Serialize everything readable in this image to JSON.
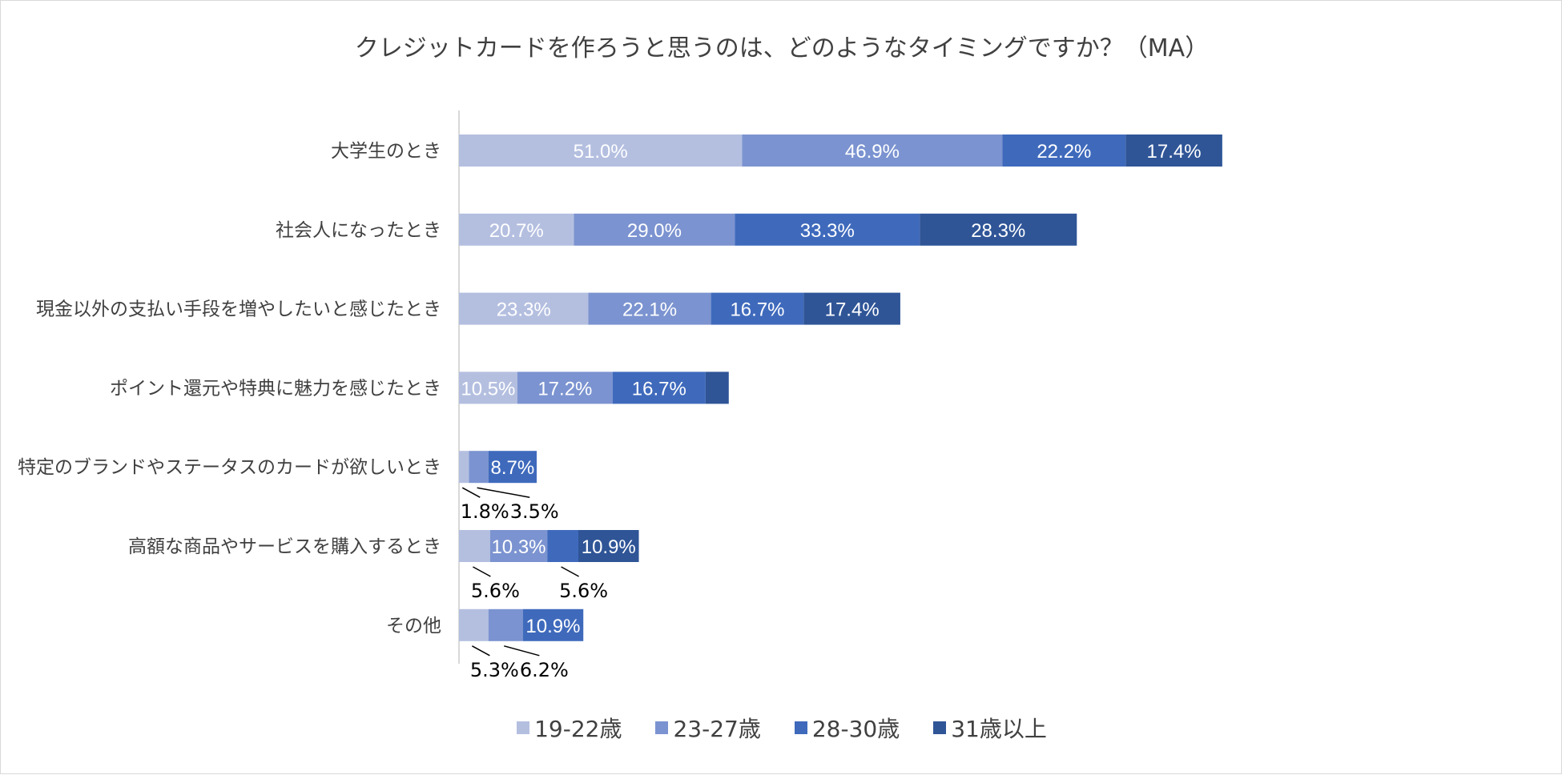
{
  "chart_data": {
    "type": "bar",
    "orientation": "horizontal",
    "stacked": true,
    "title": "クレジットカードを作ろうと思うのは、どのようなタイミングですか？（MA）",
    "categories": [
      "大学生のとき",
      "社会人になったとき",
      "現金以外の支払い手段を増やしたいと感じたとき",
      "ポイント還元や特典に魅力を感じたとき",
      "特定のブランドやステータスのカードが欲しいとき",
      "高額な商品やサービスを購入するとき",
      "その他"
    ],
    "series": [
      {
        "name": "19-22歳",
        "color": "#b4bfe0",
        "values": [
          51.0,
          20.7,
          23.3,
          10.5,
          1.8,
          5.6,
          5.3
        ]
      },
      {
        "name": "23-27歳",
        "color": "#7b93d0",
        "values": [
          46.9,
          29.0,
          22.1,
          17.2,
          3.5,
          10.3,
          6.2
        ]
      },
      {
        "name": "28-30歳",
        "color": "#3f6abc",
        "values": [
          22.2,
          33.3,
          16.7,
          16.7,
          8.7,
          5.6,
          10.9
        ]
      },
      {
        "name": "31歳以上",
        "color": "#2f5597",
        "values": [
          17.4,
          28.3,
          17.4,
          4.2,
          null,
          10.9,
          null
        ]
      }
    ],
    "labels": [
      [
        "51.0%",
        "46.9%",
        "22.2%",
        "17.4%"
      ],
      [
        "20.7%",
        "29.0%",
        "33.3%",
        "28.3%"
      ],
      [
        "23.3%",
        "22.1%",
        "16.7%",
        "17.4%"
      ],
      [
        "10.5%",
        "17.2%",
        "16.7%",
        ""
      ],
      [
        "1.8%",
        "3.5%",
        "8.7%",
        ""
      ],
      [
        "5.6%",
        "10.3%",
        "5.6%",
        "10.9%"
      ],
      [
        "5.3%",
        "6.2%",
        "10.9%",
        ""
      ]
    ],
    "label_position": [
      [
        "inside",
        "inside",
        "inside",
        "inside"
      ],
      [
        "inside",
        "inside",
        "inside",
        "inside"
      ],
      [
        "inside",
        "inside",
        "inside",
        "inside"
      ],
      [
        "inside",
        "inside",
        "inside",
        "none"
      ],
      [
        "callout",
        "callout",
        "inside",
        "none"
      ],
      [
        "callout",
        "inside",
        "callout",
        "inside"
      ],
      [
        "callout",
        "callout",
        "inside",
        "none"
      ]
    ],
    "legend_position": "bottom",
    "grid": false
  }
}
